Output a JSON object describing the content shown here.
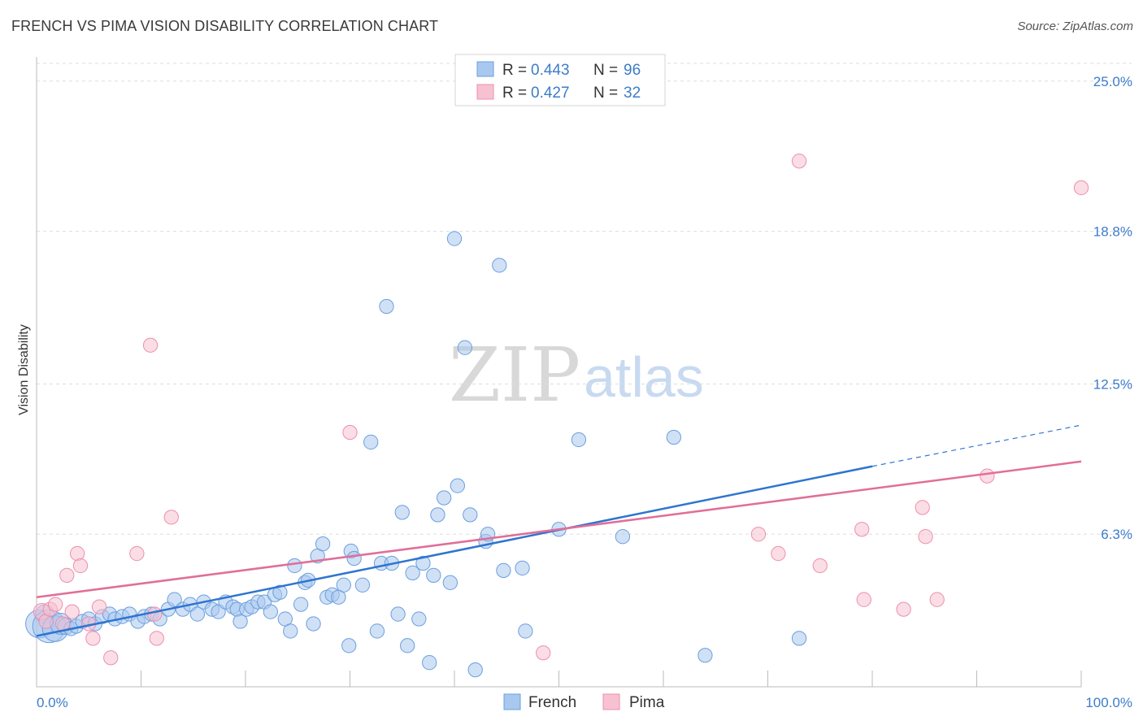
{
  "title": "FRENCH VS PIMA VISION DISABILITY CORRELATION CHART",
  "source": "Source: ZipAtlas.com",
  "watermark": {
    "zip": "ZIP",
    "atlas": "atlas"
  },
  "colors": {
    "french_fill": "#a9c8ef",
    "french_stroke": "#6b9fde",
    "french_line": "#2f74d0",
    "pima_fill": "#f7c1d2",
    "pima_stroke": "#ec8fae",
    "pima_line": "#e06f99",
    "tick_text": "#3d7cc9",
    "grid": "#dddddd"
  },
  "legend": {
    "french": {
      "r_label": "R = ",
      "r_value": "0.443",
      "n_label": "N = ",
      "n_value": "96"
    },
    "pima": {
      "r_label": "R = ",
      "r_value": "0.427",
      "n_label": "N = ",
      "n_value": "32"
    }
  },
  "bottom_legend": {
    "french": "French",
    "pima": "Pima"
  },
  "chart_data": {
    "type": "scatter",
    "title": "FRENCH VS PIMA VISION DISABILITY CORRELATION CHART",
    "xlabel": "",
    "ylabel": "Vision Disability",
    "xlim": [
      0,
      100
    ],
    "ylim": [
      0,
      26
    ],
    "x_tick_labels": [
      "0.0%",
      "100.0%"
    ],
    "y_ticks": [
      6.3,
      12.5,
      18.8,
      25.0
    ],
    "y_tick_labels": [
      "6.3%",
      "12.5%",
      "18.8%",
      "25.0%"
    ],
    "grid": true,
    "legend_position": "top-center",
    "series": [
      {
        "name": "French",
        "r": 0.443,
        "n": 96,
        "trend": {
          "x0": 0,
          "y0": 2.1,
          "x1": 80,
          "y1": 9.1,
          "dashed_to_x": 100,
          "dashed_to_y": 10.8
        },
        "points": [
          [
            0.3,
            2.6,
            24
          ],
          [
            0.8,
            3.0,
            16
          ],
          [
            1.2,
            2.5,
            28
          ],
          [
            1.8,
            2.4,
            22
          ],
          [
            2.3,
            2.6,
            18
          ],
          [
            2.8,
            2.5,
            14
          ],
          [
            3.3,
            2.4,
            12
          ],
          [
            3.8,
            2.5,
            12
          ],
          [
            4.4,
            2.7,
            12
          ],
          [
            5.0,
            2.8,
            12
          ],
          [
            5.6,
            2.6,
            12
          ],
          [
            6.3,
            2.9,
            12
          ],
          [
            7.0,
            3.0,
            12
          ],
          [
            7.5,
            2.8,
            12
          ],
          [
            8.2,
            2.9,
            12
          ],
          [
            8.9,
            3.0,
            12
          ],
          [
            9.7,
            2.7,
            12
          ],
          [
            10.3,
            2.9,
            12
          ],
          [
            11.0,
            3.0,
            12
          ],
          [
            11.8,
            2.8,
            12
          ],
          [
            12.6,
            3.2,
            12
          ],
          [
            13.2,
            3.6,
            12
          ],
          [
            14.0,
            3.2,
            12
          ],
          [
            14.7,
            3.4,
            12
          ],
          [
            15.4,
            3.0,
            12
          ],
          [
            16.0,
            3.5,
            12
          ],
          [
            16.8,
            3.2,
            12
          ],
          [
            17.4,
            3.1,
            12
          ],
          [
            18.1,
            3.5,
            12
          ],
          [
            18.8,
            3.3,
            12
          ],
          [
            19.2,
            3.2,
            12
          ],
          [
            19.5,
            2.7,
            12
          ],
          [
            20.1,
            3.2,
            12
          ],
          [
            20.6,
            3.3,
            12
          ],
          [
            21.2,
            3.5,
            12
          ],
          [
            21.8,
            3.5,
            12
          ],
          [
            22.4,
            3.1,
            12
          ],
          [
            22.8,
            3.8,
            12
          ],
          [
            23.3,
            3.9,
            12
          ],
          [
            23.8,
            2.8,
            12
          ],
          [
            24.3,
            2.3,
            12
          ],
          [
            24.7,
            5.0,
            12
          ],
          [
            25.3,
            3.4,
            12
          ],
          [
            25.7,
            4.3,
            12
          ],
          [
            26.0,
            4.4,
            12
          ],
          [
            26.5,
            2.6,
            12
          ],
          [
            26.9,
            5.4,
            12
          ],
          [
            27.4,
            5.9,
            12
          ],
          [
            27.8,
            3.7,
            12
          ],
          [
            28.3,
            3.8,
            12
          ],
          [
            28.9,
            3.7,
            12
          ],
          [
            29.4,
            4.2,
            12
          ],
          [
            29.9,
            1.7,
            12
          ],
          [
            30.1,
            5.6,
            12
          ],
          [
            30.4,
            5.3,
            12
          ],
          [
            31.2,
            4.2,
            12
          ],
          [
            32.0,
            10.1,
            12
          ],
          [
            32.6,
            2.3,
            12
          ],
          [
            33.0,
            5.1,
            12
          ],
          [
            33.5,
            15.7,
            12
          ],
          [
            34.0,
            5.1,
            12
          ],
          [
            34.6,
            3.0,
            12
          ],
          [
            35.0,
            7.2,
            12
          ],
          [
            35.5,
            1.7,
            12
          ],
          [
            36.0,
            4.7,
            12
          ],
          [
            36.6,
            2.8,
            12
          ],
          [
            37.0,
            5.1,
            12
          ],
          [
            37.6,
            1.0,
            12
          ],
          [
            38.0,
            4.6,
            12
          ],
          [
            38.4,
            7.1,
            12
          ],
          [
            39.0,
            7.8,
            12
          ],
          [
            39.6,
            4.3,
            12
          ],
          [
            40.0,
            18.5,
            12
          ],
          [
            40.3,
            8.3,
            12
          ],
          [
            41.0,
            14.0,
            12
          ],
          [
            41.5,
            7.1,
            12
          ],
          [
            42.0,
            0.7,
            12
          ],
          [
            43.0,
            6.0,
            12
          ],
          [
            43.2,
            6.3,
            12
          ],
          [
            44.3,
            17.4,
            12
          ],
          [
            44.7,
            4.8,
            12
          ],
          [
            46.5,
            4.9,
            12
          ],
          [
            46.8,
            2.3,
            12
          ],
          [
            50.0,
            6.5,
            12
          ],
          [
            51.9,
            10.2,
            12
          ],
          [
            56.1,
            6.2,
            12
          ],
          [
            61.0,
            10.3,
            12
          ],
          [
            64.0,
            1.3,
            12
          ],
          [
            73.0,
            2.0,
            12
          ]
        ]
      },
      {
        "name": "Pima",
        "r": 0.427,
        "n": 32,
        "trend": {
          "x0": 0,
          "y0": 3.7,
          "x1": 100,
          "y1": 9.3
        },
        "points": [
          [
            0.5,
            3.1,
            14
          ],
          [
            0.9,
            2.7,
            12
          ],
          [
            1.3,
            3.2,
            12
          ],
          [
            1.8,
            3.4,
            12
          ],
          [
            2.5,
            2.6,
            12
          ],
          [
            2.9,
            4.6,
            12
          ],
          [
            3.4,
            3.1,
            12
          ],
          [
            3.9,
            5.5,
            12
          ],
          [
            4.2,
            5.0,
            12
          ],
          [
            5.0,
            2.6,
            12
          ],
          [
            5.4,
            2.0,
            12
          ],
          [
            6.0,
            3.3,
            12
          ],
          [
            7.1,
            1.2,
            12
          ],
          [
            9.6,
            5.5,
            12
          ],
          [
            10.9,
            14.1,
            12
          ],
          [
            11.5,
            2.0,
            12
          ],
          [
            11.3,
            3.0,
            12
          ],
          [
            12.9,
            7.0,
            12
          ],
          [
            30.0,
            10.5,
            12
          ],
          [
            48.5,
            1.4,
            12
          ],
          [
            69.1,
            6.3,
            12
          ],
          [
            71.0,
            5.5,
            12
          ],
          [
            73.0,
            21.7,
            12
          ],
          [
            75.0,
            5.0,
            12
          ],
          [
            79.0,
            6.5,
            12
          ],
          [
            79.2,
            3.6,
            12
          ],
          [
            83.0,
            3.2,
            12
          ],
          [
            84.8,
            7.4,
            12
          ],
          [
            85.1,
            6.2,
            12
          ],
          [
            86.2,
            3.6,
            12
          ],
          [
            91.0,
            8.7,
            12
          ],
          [
            100.0,
            20.6,
            12
          ]
        ]
      }
    ]
  }
}
